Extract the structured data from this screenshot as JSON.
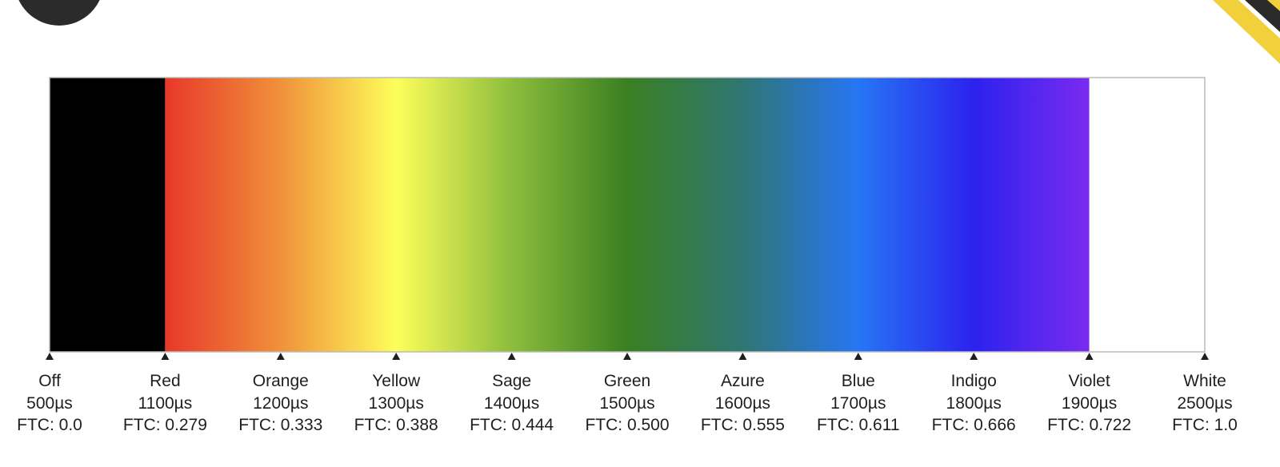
{
  "spectrum": {
    "stops": [
      {
        "name": "Off",
        "pulse": "500µs",
        "ftc": "FTC: 0.0",
        "color": "#000000"
      },
      {
        "name": "Red",
        "pulse": "1100µs",
        "ftc": "FTC: 0.279",
        "color": "#e8382a"
      },
      {
        "name": "Orange",
        "pulse": "1200µs",
        "ftc": "FTC: 0.333",
        "color": "#f0913a"
      },
      {
        "name": "Yellow",
        "pulse": "1300µs",
        "ftc": "FTC: 0.388",
        "color": "#fefe5a"
      },
      {
        "name": "Sage",
        "pulse": "1400µs",
        "ftc": "FTC: 0.444",
        "color": "#8cbd3c"
      },
      {
        "name": "Green",
        "pulse": "1500µs",
        "ftc": "FTC: 0.500",
        "color": "#3a7f22"
      },
      {
        "name": "Azure",
        "pulse": "1600µs",
        "ftc": "FTC: 0.555",
        "color": "#2f7673"
      },
      {
        "name": "Blue",
        "pulse": "1700µs",
        "ftc": "FTC: 0.611",
        "color": "#2676f4"
      },
      {
        "name": "Indigo",
        "pulse": "1800µs",
        "ftc": "FTC: 0.666",
        "color": "#2c22ee"
      },
      {
        "name": "Violet",
        "pulse": "1900µs",
        "ftc": "FTC: 0.722",
        "color": "#7a2af0"
      },
      {
        "name": "White",
        "pulse": "2500µs",
        "ftc": "FTC: 1.0",
        "color": "#ffffff"
      }
    ],
    "border_color": "#bbbbbb",
    "tick_color": "#1f1f1f"
  },
  "decor": {
    "logo_color": "#2b2b2b",
    "banner_color": "#f2d03b"
  }
}
